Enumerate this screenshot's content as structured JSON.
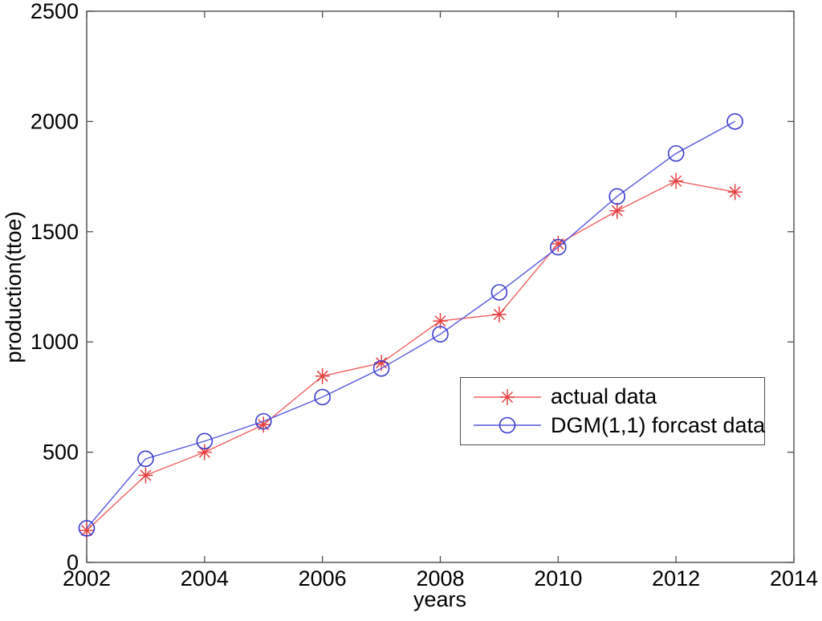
{
  "figure": {
    "background": "#ffffff",
    "axis_box_color": "#4d4d4d",
    "text_color": "#000000"
  },
  "chart_data": {
    "type": "line",
    "title": "",
    "xlabel": "years",
    "ylabel": "production(ttoe)",
    "xlim": [
      2002,
      2014
    ],
    "ylim": [
      0,
      2500
    ],
    "xticks": [
      2002,
      2004,
      2006,
      2008,
      2010,
      2012,
      2014
    ],
    "yticks": [
      0,
      500,
      1000,
      1500,
      2000,
      2500
    ],
    "grid": false,
    "legend_position": "middle-right",
    "x": [
      2002,
      2003,
      2004,
      2005,
      2006,
      2007,
      2008,
      2009,
      2010,
      2011,
      2012,
      2013
    ],
    "series": [
      {
        "name": "actual data",
        "marker": "asterisk",
        "line_color": "#f26060",
        "marker_color": "#e84040",
        "values": [
          145,
          395,
          500,
          625,
          845,
          905,
          1095,
          1125,
          1445,
          1595,
          1730,
          1680
        ]
      },
      {
        "name": "DGM(1,1) forcast data",
        "marker": "circle",
        "line_color": "#5656e0",
        "marker_color": "#3a3ad0",
        "values": [
          155,
          470,
          550,
          640,
          750,
          880,
          1035,
          1225,
          1430,
          1660,
          1855,
          2000
        ]
      }
    ]
  }
}
